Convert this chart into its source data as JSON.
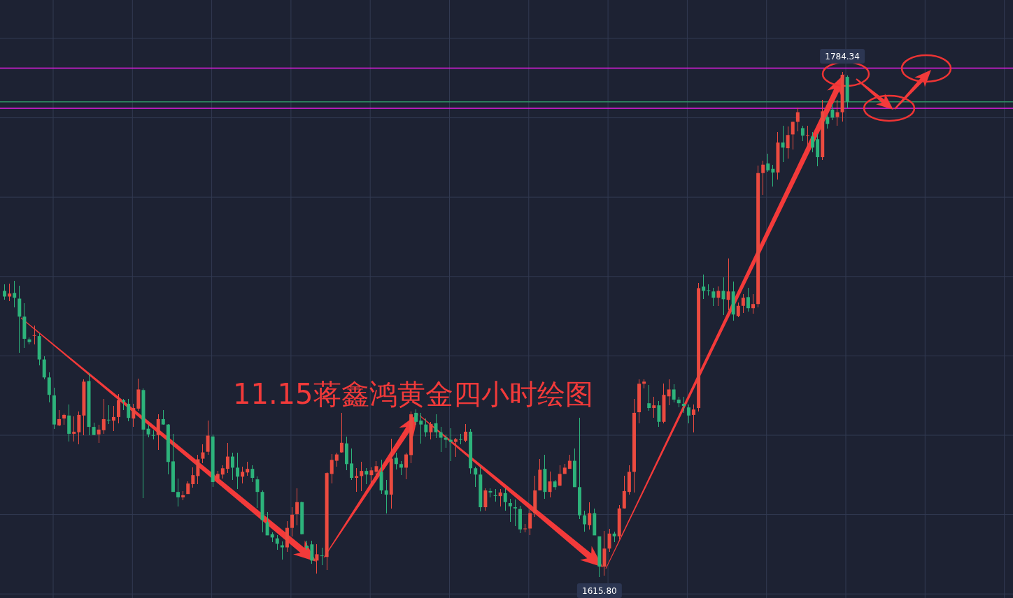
{
  "chart_data": {
    "type": "candlestick",
    "title": "11.15蒋鑫鸿黄金四小时绘图",
    "categories": [
      null,
      null,
      null,
      null,
      null,
      null,
      null,
      null,
      null,
      null,
      null,
      null,
      null,
      null,
      null,
      null,
      null,
      null,
      null,
      null,
      null,
      null,
      null,
      null,
      null,
      null,
      null,
      null,
      null,
      null,
      null,
      null,
      null,
      null,
      null,
      null,
      null,
      null,
      null,
      null,
      null,
      null,
      null,
      null,
      null,
      null,
      null,
      null,
      null,
      null,
      null,
      null,
      null,
      null,
      null,
      null,
      null,
      null,
      null,
      null,
      null,
      null,
      null,
      null,
      null,
      null,
      null,
      null,
      null,
      null,
      null,
      null,
      null,
      null,
      null,
      null,
      null,
      null,
      null,
      null,
      null,
      null,
      null,
      null,
      null,
      null,
      null,
      null,
      null,
      null,
      null,
      null,
      null,
      null,
      null,
      null,
      null,
      null,
      null,
      null,
      null,
      null,
      null,
      null,
      null,
      null,
      null,
      null,
      null,
      null,
      null,
      null,
      null,
      null,
      null,
      null,
      null,
      null,
      null,
      null,
      null,
      null,
      null,
      null,
      null,
      null,
      null,
      null,
      null,
      null,
      null,
      null,
      null,
      null,
      null,
      null,
      null,
      null,
      null,
      null,
      null,
      null,
      null,
      null,
      null,
      null,
      null,
      null,
      null,
      null,
      null,
      null,
      null,
      null,
      null,
      null,
      null,
      null,
      null,
      null,
      null,
      null,
      null,
      null,
      null,
      null,
      null,
      null,
      null,
      null,
      null
    ],
    "ohlc": [
      [
        1711.3,
        1713.4,
        1708.3,
        1709.4
      ],
      [
        1709.4,
        1713.8,
        1707.8,
        1710.4
      ],
      [
        1710.6,
        1714.7,
        1705.7,
        1709.0
      ],
      [
        1708.7,
        1713.1,
        1690.7,
        1702.7
      ],
      [
        1702.7,
        1707.1,
        1692.3,
        1695.3
      ],
      [
        1695.1,
        1695.8,
        1693.5,
        1694.2
      ],
      [
        1696.4,
        1699.7,
        1693.5,
        1696.5
      ],
      [
        1696.2,
        1697.2,
        1686.5,
        1688.4
      ],
      [
        1688.4,
        1689.5,
        1681.7,
        1682.4
      ],
      [
        1682.4,
        1684.2,
        1674.1,
        1676.6
      ],
      [
        1676.4,
        1678.9,
        1665.3,
        1666.7
      ],
      [
        1666.4,
        1671.5,
        1666.2,
        1668.5
      ],
      [
        1668.7,
        1670.4,
        1666.7,
        1669.9
      ],
      [
        1669.7,
        1673.4,
        1661.1,
        1663.6
      ],
      [
        1663.6,
        1669.4,
        1661.1,
        1664.3
      ],
      [
        1664.1,
        1671.0,
        1660.0,
        1669.9
      ],
      [
        1669.7,
        1681.7,
        1663.2,
        1681.0
      ],
      [
        1681.2,
        1683.8,
        1663.2,
        1665.9
      ],
      [
        1665.9,
        1667.3,
        1663.2,
        1663.2
      ],
      [
        1663.4,
        1666.7,
        1660.6,
        1665.0
      ],
      [
        1664.8,
        1675.2,
        1663.6,
        1668.5
      ],
      [
        1668.3,
        1673.1,
        1666.9,
        1668.2
      ],
      [
        1668.0,
        1672.9,
        1664.6,
        1669.2
      ],
      [
        1669.2,
        1676.8,
        1667.1,
        1674.8
      ],
      [
        1674.8,
        1675.2,
        1671.5,
        1674.3
      ],
      [
        1673.6,
        1675.2,
        1667.8,
        1668.9
      ],
      [
        1668.7,
        1673.6,
        1665.9,
        1672.2
      ],
      [
        1672.0,
        1682.1,
        1671.3,
        1678.4
      ],
      [
        1678.2,
        1678.7,
        1642.1,
        1665.0
      ],
      [
        1665.3,
        1666.7,
        1662.5,
        1663.4
      ],
      [
        1663.2,
        1664.8,
        1661.8,
        1663.1
      ],
      [
        1663.2,
        1670.1,
        1658.3,
        1668.5
      ],
      [
        1668.5,
        1671.5,
        1666.7,
        1666.7
      ],
      [
        1666.7,
        1666.9,
        1650.0,
        1654.2
      ],
      [
        1654.4,
        1663.6,
        1644.2,
        1644.2
      ],
      [
        1644.2,
        1648.6,
        1639.4,
        1642.4
      ],
      [
        1642.4,
        1644.5,
        1641.5,
        1643.1
      ],
      [
        1643.5,
        1647.7,
        1643.5,
        1647.0
      ],
      [
        1646.8,
        1652.3,
        1645.6,
        1649.8
      ],
      [
        1649.5,
        1656.7,
        1646.8,
        1655.1
      ],
      [
        1655.3,
        1660.0,
        1653.7,
        1657.4
      ],
      [
        1657.6,
        1668.0,
        1656.5,
        1663.0
      ],
      [
        1662.7,
        1663.4,
        1645.8,
        1647.5
      ],
      [
        1648.6,
        1651.2,
        1647.0,
        1650.2
      ],
      [
        1650.0,
        1653.2,
        1648.6,
        1652.1
      ],
      [
        1651.9,
        1660.6,
        1650.5,
        1656.0
      ],
      [
        1656.0,
        1657.4,
        1648.2,
        1652.3
      ],
      [
        1652.3,
        1657.4,
        1645.2,
        1649.3
      ],
      [
        1649.3,
        1652.6,
        1647.0,
        1650.9
      ],
      [
        1650.7,
        1654.2,
        1649.5,
        1651.9
      ],
      [
        1651.9,
        1653.2,
        1647.5,
        1648.9
      ],
      [
        1648.4,
        1649.3,
        1638.9,
        1644.2
      ],
      [
        1644.2,
        1644.7,
        1630.8,
        1634.8
      ],
      [
        1634.1,
        1637.5,
        1629.7,
        1629.7
      ],
      [
        1630.1,
        1630.8,
        1627.4,
        1629.0
      ],
      [
        1628.7,
        1629.7,
        1625.0,
        1626.9
      ],
      [
        1626.4,
        1627.8,
        1621.6,
        1625.7
      ],
      [
        1625.7,
        1634.5,
        1624.3,
        1632.2
      ],
      [
        1632.2,
        1639.1,
        1629.4,
        1636.6
      ],
      [
        1636.8,
        1645.4,
        1633.1,
        1640.8
      ],
      [
        1640.8,
        1641.0,
        1630.1,
        1630.1
      ],
      [
        1626.2,
        1628.0,
        1625.0,
        1625.5
      ],
      [
        1626.7,
        1628.0,
        1620.2,
        1621.3
      ],
      [
        1621.3,
        1626.7,
        1616.9,
        1623.4
      ],
      [
        1623.0,
        1625.5,
        1619.7,
        1622.9
      ],
      [
        1622.5,
        1650.7,
        1618.1,
        1650.5
      ],
      [
        1650.2,
        1656.9,
        1647.0,
        1654.9
      ],
      [
        1654.6,
        1657.2,
        1652.6,
        1656.7
      ],
      [
        1657.4,
        1670.6,
        1657.4,
        1660.6
      ],
      [
        1660.4,
        1662.7,
        1651.4,
        1653.5
      ],
      [
        1653.7,
        1658.6,
        1648.2,
        1648.9
      ],
      [
        1648.9,
        1652.1,
        1644.2,
        1649.5
      ],
      [
        1649.5,
        1654.2,
        1644.5,
        1651.2
      ],
      [
        1651.2,
        1652.1,
        1646.8,
        1650.0
      ],
      [
        1649.8,
        1652.3,
        1647.0,
        1651.4
      ],
      [
        1650.9,
        1654.6,
        1648.6,
        1652.8
      ],
      [
        1650.9,
        1654.9,
        1643.5,
        1644.7
      ],
      [
        1644.7,
        1648.2,
        1637.1,
        1643.3
      ],
      [
        1643.3,
        1662.0,
        1638.7,
        1655.3
      ],
      [
        1655.6,
        1657.2,
        1651.6,
        1653.5
      ],
      [
        1653.5,
        1654.6,
        1649.8,
        1652.3
      ],
      [
        1652.3,
        1657.4,
        1648.4,
        1656.7
      ],
      [
        1656.5,
        1671.0,
        1653.9,
        1670.1
      ],
      [
        1670.6,
        1671.7,
        1666.7,
        1667.6
      ],
      [
        1668.0,
        1670.6,
        1660.4,
        1666.7
      ],
      [
        1666.7,
        1668.7,
        1662.7,
        1664.1
      ],
      [
        1664.1,
        1667.6,
        1661.8,
        1666.9
      ],
      [
        1667.1,
        1670.1,
        1662.3,
        1664.1
      ],
      [
        1664.1,
        1665.9,
        1657.6,
        1662.3
      ],
      [
        1662.3,
        1663.4,
        1659.0,
        1661.6
      ],
      [
        1661.6,
        1665.5,
        1654.6,
        1660.9
      ],
      [
        1660.9,
        1662.3,
        1656.0,
        1661.8
      ],
      [
        1661.8,
        1663.6,
        1660.2,
        1661.6
      ],
      [
        1661.3,
        1666.9,
        1660.9,
        1664.3
      ],
      [
        1664.3,
        1665.3,
        1650.2,
        1652.1
      ],
      [
        1652.1,
        1652.6,
        1645.8,
        1650.0
      ],
      [
        1650.0,
        1652.6,
        1637.8,
        1639.1
      ],
      [
        1639.1,
        1645.4,
        1638.0,
        1644.7
      ],
      [
        1644.5,
        1645.4,
        1642.4,
        1644.0
      ],
      [
        1643.1,
        1645.2,
        1641.0,
        1643.0
      ],
      [
        1642.8,
        1645.2,
        1639.4,
        1644.0
      ],
      [
        1643.8,
        1645.4,
        1638.0,
        1640.8
      ],
      [
        1640.5,
        1641.9,
        1634.3,
        1639.4
      ],
      [
        1639.1,
        1641.7,
        1632.9,
        1638.7
      ],
      [
        1638.5,
        1639.6,
        1630.6,
        1631.7
      ],
      [
        1631.9,
        1633.4,
        1630.8,
        1632.0
      ],
      [
        1632.0,
        1638.7,
        1629.7,
        1637.1
      ],
      [
        1637.1,
        1649.5,
        1635.9,
        1644.7
      ],
      [
        1644.7,
        1655.1,
        1644.7,
        1651.6
      ],
      [
        1651.9,
        1656.7,
        1641.9,
        1644.2
      ],
      [
        1644.2,
        1650.9,
        1642.4,
        1647.7
      ],
      [
        1647.7,
        1648.2,
        1644.9,
        1645.8
      ],
      [
        1646.3,
        1653.0,
        1646.1,
        1650.2
      ],
      [
        1650.2,
        1653.5,
        1650.2,
        1652.3
      ],
      [
        1651.9,
        1656.7,
        1651.9,
        1654.6
      ],
      [
        1654.6,
        1658.6,
        1645.8,
        1645.8
      ],
      [
        1645.8,
        1668.9,
        1635.2,
        1636.4
      ],
      [
        1636.4,
        1638.0,
        1631.0,
        1633.4
      ],
      [
        1633.1,
        1640.8,
        1631.7,
        1637.1
      ],
      [
        1637.1,
        1638.7,
        1629.7,
        1629.7
      ],
      [
        1629.4,
        1629.4,
        1615.8,
        1619.3
      ],
      [
        1619.3,
        1631.3,
        1616.3,
        1625.3
      ],
      [
        1625.3,
        1632.0,
        1624.3,
        1630.3
      ],
      [
        1630.3,
        1631.0,
        1627.4,
        1629.4
      ],
      [
        1629.4,
        1639.8,
        1628.3,
        1638.7
      ],
      [
        1638.7,
        1649.5,
        1638.7,
        1644.5
      ],
      [
        1644.2,
        1653.2,
        1643.3,
        1650.9
      ],
      [
        1650.9,
        1675.2,
        1644.0,
        1670.6
      ],
      [
        1670.8,
        1681.7,
        1667.1,
        1680.3
      ],
      [
        1680.3,
        1681.7,
        1678.7,
        1681.0
      ],
      [
        1673.8,
        1679.8,
        1671.3,
        1672.2
      ],
      [
        1672.2,
        1675.9,
        1668.9,
        1673.1
      ],
      [
        1673.1,
        1674.5,
        1665.9,
        1667.6
      ],
      [
        1667.6,
        1680.3,
        1667.1,
        1676.6
      ],
      [
        1676.1,
        1681.7,
        1673.1,
        1678.4
      ],
      [
        1678.4,
        1680.1,
        1674.1,
        1675.0
      ],
      [
        1675.0,
        1675.9,
        1672.4,
        1673.8
      ],
      [
        1673.6,
        1675.9,
        1670.6,
        1672.9
      ],
      [
        1672.4,
        1673.4,
        1667.1,
        1669.7
      ],
      [
        1669.9,
        1673.4,
        1664.1,
        1671.7
      ],
      [
        1672.2,
        1714.0,
        1671.0,
        1712.2
      ],
      [
        1712.7,
        1716.8,
        1708.5,
        1711.3
      ],
      [
        1711.5,
        1713.4,
        1709.7,
        1711.4
      ],
      [
        1711.1,
        1712.2,
        1706.3,
        1709.0
      ],
      [
        1709.0,
        1712.7,
        1706.2,
        1711.3
      ],
      [
        1711.3,
        1715.7,
        1703.2,
        1708.5
      ],
      [
        1708.3,
        1722.1,
        1704.8,
        1711.1
      ],
      [
        1711.1,
        1714.3,
        1701.3,
        1703.4
      ],
      [
        1702.9,
        1707.3,
        1702.5,
        1706.3
      ],
      [
        1706.3,
        1710.1,
        1703.9,
        1709.0
      ],
      [
        1709.2,
        1712.4,
        1704.3,
        1705.5
      ],
      [
        1705.5,
        1710.1,
        1703.6,
        1706.9
      ],
      [
        1706.9,
        1753.1,
        1705.7,
        1750.6
      ],
      [
        1750.6,
        1754.7,
        1743.4,
        1753.4
      ],
      [
        1753.8,
        1757.1,
        1751.0,
        1751.5
      ],
      [
        1752.0,
        1753.4,
        1746.2,
        1750.8
      ],
      [
        1750.8,
        1764.2,
        1748.5,
        1760.8
      ],
      [
        1760.8,
        1766.5,
        1754.3,
        1759.1
      ],
      [
        1758.9,
        1766.1,
        1755.4,
        1763.3
      ],
      [
        1763.5,
        1767.9,
        1758.4,
        1767.7
      ],
      [
        1767.7,
        1772.5,
        1764.5,
        1770.9
      ],
      [
        1765.6,
        1766.3,
        1761.2,
        1763.1
      ],
      [
        1763.2,
        1766.3,
        1759.1,
        1763.3
      ],
      [
        1762.8,
        1764.2,
        1757.5,
        1759.1
      ],
      [
        1761.9,
        1763.5,
        1752.9,
        1755.9
      ],
      [
        1755.9,
        1775.1,
        1755.0,
        1771.2
      ],
      [
        1769.3,
        1770.0,
        1765.4,
        1767.0
      ],
      [
        1771.8,
        1773.6,
        1768.2,
        1769.1
      ],
      [
        1769.3,
        1775.1,
        1766.3,
        1770.9
      ],
      [
        1770.9,
        1784.34,
        1767.9,
        1783.4
      ],
      [
        1782.7,
        1783.2,
        1772.3,
        1774.4
      ]
    ],
    "colors": [
      "#2db37b",
      "#eb4b40",
      "#2db37b",
      "#2db37b",
      "#2db37b",
      "#2db37b",
      "#eb4b40",
      "#2db37b",
      "#2db37b",
      "#2db37b",
      "#2db37b",
      "#eb4b40",
      "#eb4b40",
      "#2db37b",
      "#eb4b40",
      "#eb4b40",
      "#eb4b40",
      "#2db37b",
      "#2db37b",
      "#eb4b40",
      "#eb4b40",
      "#2db37b",
      "#eb4b40",
      "#eb4b40",
      "#2db37b",
      "#2db37b",
      "#eb4b40",
      "#eb4b40",
      "#2db37b",
      "#2db37b",
      "#2db37b",
      "#eb4b40",
      "#2db37b",
      "#2db37b",
      "#2db37b",
      "#2db37b",
      "#eb4b40",
      "#eb4b40",
      "#eb4b40",
      "#eb4b40",
      "#eb4b40",
      "#eb4b40",
      "#2db37b",
      "#eb4b40",
      "#eb4b40",
      "#eb4b40",
      "#2db37b",
      "#2db37b",
      "#eb4b40",
      "#eb4b40",
      "#2db37b",
      "#2db37b",
      "#2db37b",
      "#2db37b",
      "#2db37b",
      "#2db37b",
      "#2db37b",
      "#eb4b40",
      "#eb4b40",
      "#eb4b40",
      "#2db37b",
      "#2db37b",
      "#2db37b",
      "#eb4b40",
      "#2db37b",
      "#eb4b40",
      "#eb4b40",
      "#eb4b40",
      "#eb4b40",
      "#2db37b",
      "#2db37b",
      "#eb4b40",
      "#eb4b40",
      "#2db37b",
      "#eb4b40",
      "#eb4b40",
      "#2db37b",
      "#2db37b",
      "#eb4b40",
      "#2db37b",
      "#2db37b",
      "#eb4b40",
      "#eb4b40",
      "#2db37b",
      "#2db37b",
      "#2db37b",
      "#eb4b40",
      "#2db37b",
      "#2db37b",
      "#2db37b",
      "#2db37b",
      "#eb4b40",
      "#2db37b",
      "#eb4b40",
      "#2db37b",
      "#2db37b",
      "#2db37b",
      "#eb4b40",
      "#2db37b",
      "#2db37b",
      "#eb4b40",
      "#2db37b",
      "#2db37b",
      "#2db37b",
      "#2db37b",
      "#eb4b40",
      "#eb4b40",
      "#eb4b40",
      "#eb4b40",
      "#2db37b",
      "#eb4b40",
      "#2db37b",
      "#eb4b40",
      "#eb4b40",
      "#eb4b40",
      "#2db37b",
      "#2db37b",
      "#2db37b",
      "#eb4b40",
      "#2db37b",
      "#2db37b",
      "#eb4b40",
      "#eb4b40",
      "#2db37b",
      "#eb4b40",
      "#eb4b40",
      "#eb4b40",
      "#eb4b40",
      "#eb4b40",
      "#eb4b40",
      "#2db37b",
      "#eb4b40",
      "#2db37b",
      "#eb4b40",
      "#eb4b40",
      "#2db37b",
      "#2db37b",
      "#2db37b",
      "#2db37b",
      "#eb4b40",
      "#eb4b40",
      "#2db37b",
      "#2db37b",
      "#2db37b",
      "#eb4b40",
      "#2db37b",
      "#eb4b40",
      "#2db37b",
      "#eb4b40",
      "#eb4b40",
      "#2db37b",
      "#eb4b40",
      "#eb4b40",
      "#eb4b40",
      "#2db37b",
      "#2db37b",
      "#eb4b40",
      "#2db37b",
      "#eb4b40",
      "#eb4b40",
      "#eb4b40",
      "#2db37b",
      "#eb4b40",
      "#2db37b",
      "#2db37b",
      "#eb4b40",
      "#2db37b",
      "#2db37b",
      "#eb4b40",
      "#eb4b40",
      "#2db37b"
    ],
    "grid": true,
    "ref_lines": [
      {
        "axis": "y",
        "value": 1785.6,
        "color": "#e61ee6"
      },
      {
        "axis": "y",
        "value": 1772.2,
        "color": "#e61ee6"
      },
      {
        "axis": "y",
        "value": 1774.4,
        "color": "#2e8f62"
      }
    ],
    "annotations": [
      {
        "text": "1784.34",
        "y": 1784.34
      },
      {
        "text": "1615.80",
        "y": 1615.8
      }
    ]
  }
}
